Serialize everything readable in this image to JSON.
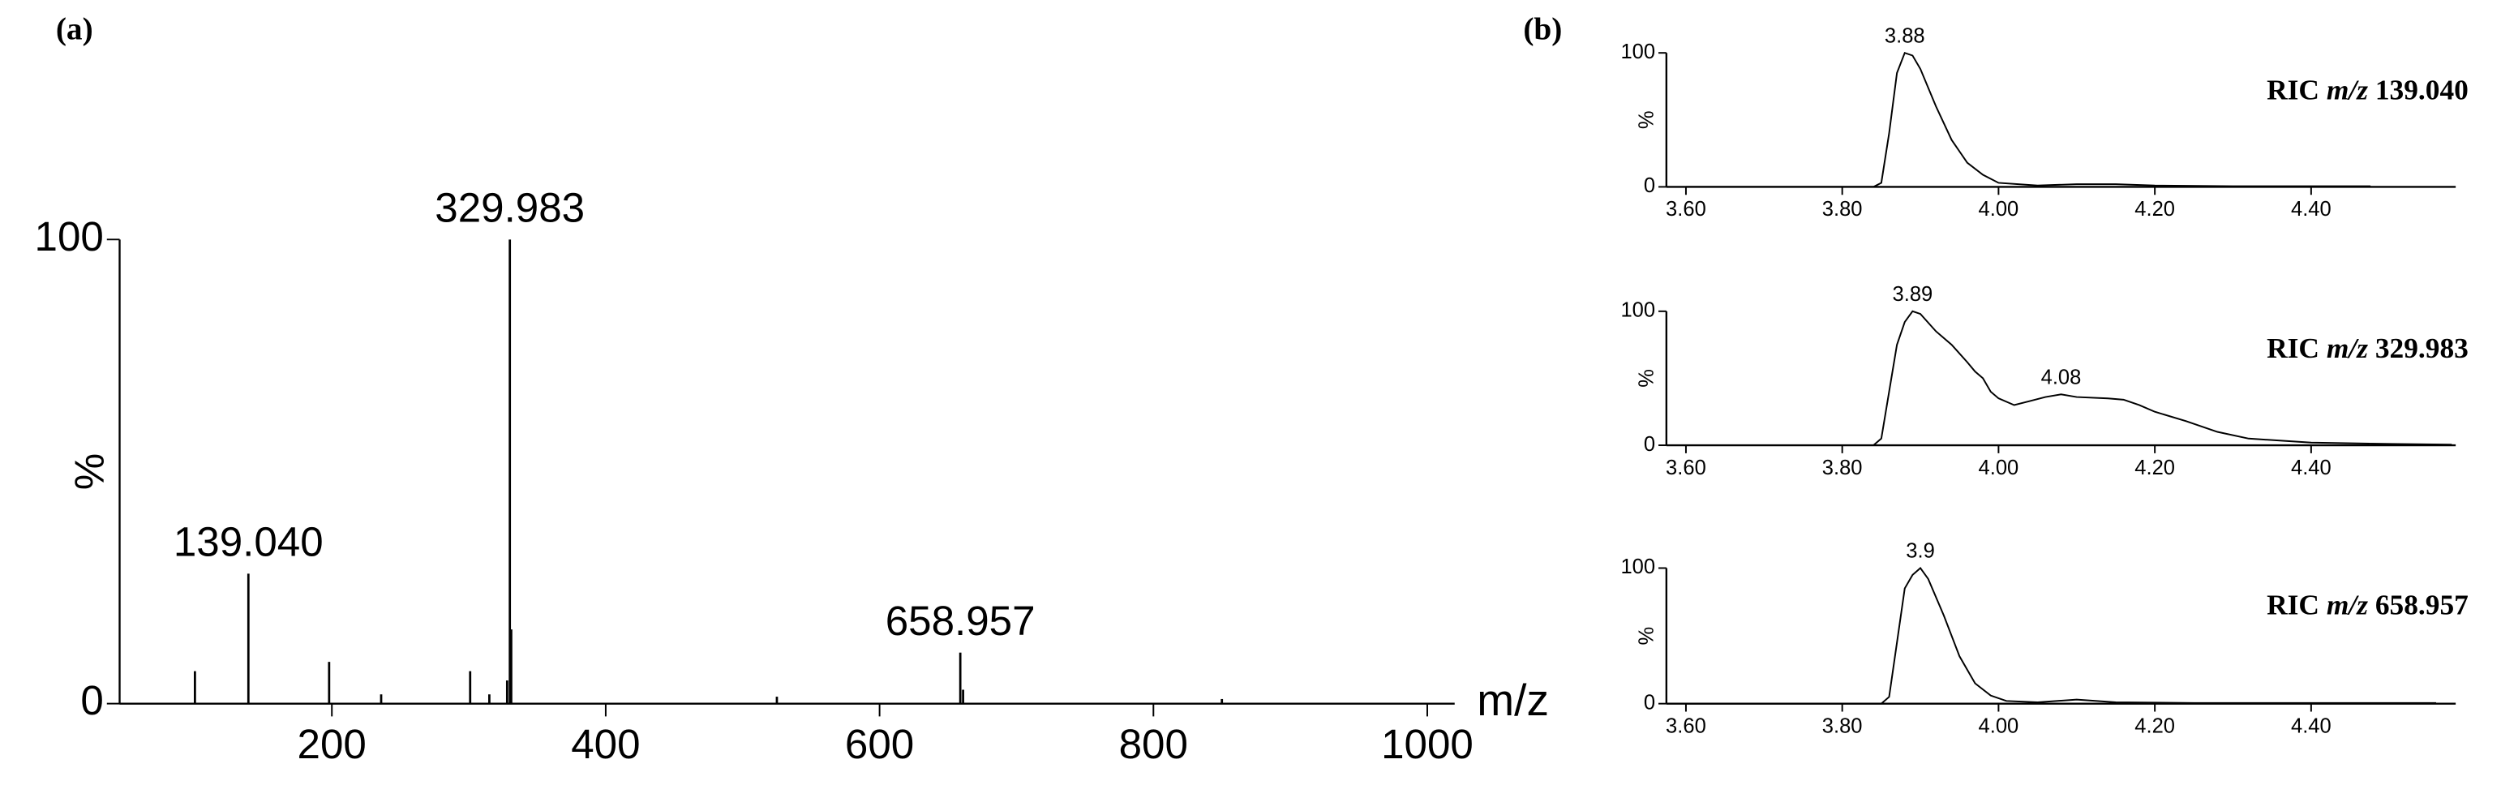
{
  "chart_data": [
    {
      "type": "stem",
      "panel_label": "(a)",
      "x_label": "m/z",
      "y_label": "%",
      "color": "#000000",
      "x": [
        100,
        139.04,
        198,
        236,
        301,
        315,
        328,
        329.983,
        331,
        525,
        658.957,
        661,
        850
      ],
      "values": [
        7,
        28,
        9,
        2,
        7,
        2,
        5,
        100,
        16,
        1.5,
        11,
        3,
        1
      ],
      "x_labels": [
        null,
        "139.040",
        null,
        null,
        null,
        null,
        null,
        "329.983",
        null,
        null,
        "658.957",
        null,
        null
      ],
      "xlim": [
        45,
        1020
      ],
      "xticks": [
        200,
        400,
        600,
        800,
        1000
      ],
      "ylim": [
        0,
        100
      ],
      "yticks": [
        0,
        100
      ]
    },
    {
      "type": "line",
      "panel_label": "(b)",
      "trace_label": [
        "RIC",
        "m/z",
        "139.040"
      ],
      "y_label": "%",
      "color": "#000000",
      "x": [
        3.6,
        3.7,
        3.8,
        3.84,
        3.85,
        3.86,
        3.87,
        3.88,
        3.89,
        3.9,
        3.92,
        3.94,
        3.96,
        3.98,
        4.0,
        4.05,
        4.1,
        4.15,
        4.2,
        4.3,
        4.4,
        4.476
      ],
      "values": [
        0,
        0,
        0,
        0,
        3,
        40,
        85,
        100,
        98,
        88,
        60,
        35,
        18,
        9,
        3,
        1,
        2,
        2,
        1,
        0.5,
        0.5,
        0.5
      ],
      "annotations": [
        3.88
      ],
      "xlim": [
        3.575,
        4.585
      ],
      "xticks": [
        {
          "value": 3.6,
          "label": "3.60"
        },
        {
          "value": 3.8,
          "label": "3.80"
        },
        {
          "value": 4.0,
          "label": "4.00"
        },
        {
          "value": 4.2,
          "label": "4.20"
        },
        {
          "value": 4.4,
          "label": "4.40"
        }
      ],
      "ylim": [
        0,
        100
      ],
      "yticks": [
        0,
        100
      ]
    },
    {
      "type": "line",
      "trace_label": [
        "RIC",
        "m/z",
        "329.983"
      ],
      "y_label": "%",
      "color": "#000000",
      "x": [
        3.6,
        3.84,
        3.85,
        3.86,
        3.87,
        3.88,
        3.89,
        3.9,
        3.92,
        3.94,
        3.96,
        3.97,
        3.98,
        3.99,
        4.0,
        4.02,
        4.04,
        4.06,
        4.08,
        4.1,
        4.14,
        4.16,
        4.18,
        4.2,
        4.24,
        4.28,
        4.32,
        4.4,
        4.5,
        4.58
      ],
      "values": [
        0,
        0,
        5,
        40,
        75,
        92,
        100,
        98,
        85,
        75,
        62,
        55,
        50,
        40,
        35,
        30,
        33,
        36,
        38,
        36,
        35,
        34,
        30,
        25,
        18,
        10,
        5,
        2,
        1,
        0.5
      ],
      "annotations": [
        3.89,
        4.08
      ],
      "xlim": [
        3.575,
        4.585
      ],
      "xticks": [
        {
          "value": 3.6,
          "label": "3.60"
        },
        {
          "value": 3.8,
          "label": "3.80"
        },
        {
          "value": 4.0,
          "label": "4.00"
        },
        {
          "value": 4.2,
          "label": "4.20"
        },
        {
          "value": 4.4,
          "label": "4.40"
        }
      ],
      "ylim": [
        0,
        100
      ],
      "yticks": [
        0,
        100
      ]
    },
    {
      "type": "line",
      "trace_label": [
        "RIC",
        "m/z",
        "658.957"
      ],
      "y_label": "%",
      "color": "#000000",
      "x": [
        3.6,
        3.85,
        3.86,
        3.87,
        3.88,
        3.89,
        3.9,
        3.91,
        3.93,
        3.95,
        3.97,
        3.99,
        4.01,
        4.05,
        4.1,
        4.15,
        4.25,
        4.4,
        4.56
      ],
      "values": [
        0,
        0,
        5,
        45,
        85,
        95,
        100,
        92,
        65,
        35,
        15,
        6,
        2,
        1,
        3,
        1,
        0.5,
        0.5,
        0.5
      ],
      "annotations": [
        3.9
      ],
      "xlim": [
        3.575,
        4.585
      ],
      "xticks": [
        {
          "value": 3.6,
          "label": "3.60"
        },
        {
          "value": 3.8,
          "label": "3.80"
        },
        {
          "value": 4.0,
          "label": "4.00"
        },
        {
          "value": 4.2,
          "label": "4.20"
        },
        {
          "value": 4.4,
          "label": "4.40"
        }
      ],
      "ylim": [
        0,
        100
      ],
      "yticks": [
        0,
        100
      ]
    }
  ]
}
